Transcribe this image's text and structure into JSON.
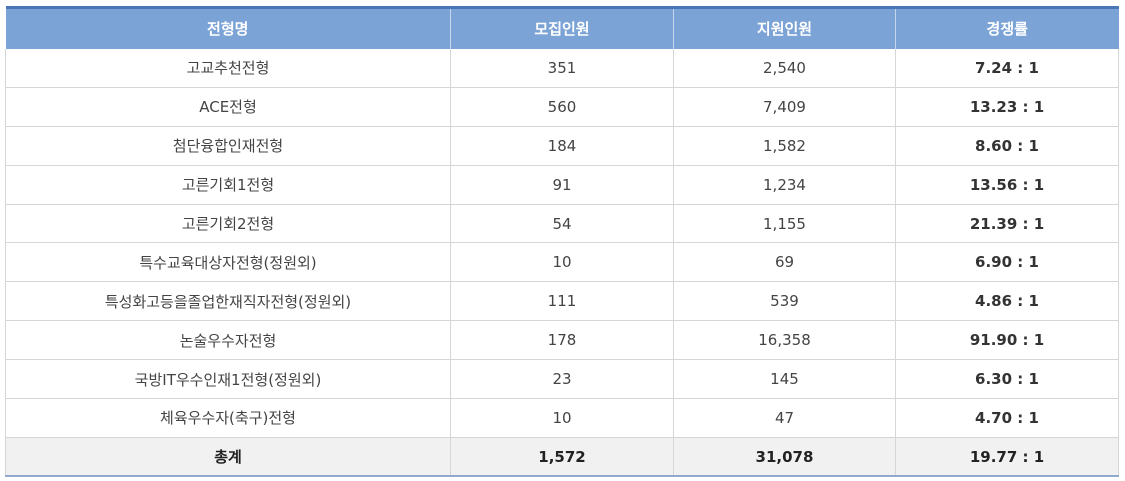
{
  "table": {
    "headers": [
      "전형명",
      "모집인원",
      "지원인원",
      "경쟁률"
    ],
    "rows": [
      {
        "name": "고교추천전형",
        "recruit": "351",
        "applicants": "2,540",
        "ratio": "7.24 : 1"
      },
      {
        "name": "ACE전형",
        "recruit": "560",
        "applicants": "7,409",
        "ratio": "13.23 : 1"
      },
      {
        "name": "첨단융합인재전형",
        "recruit": "184",
        "applicants": "1,582",
        "ratio": "8.60 : 1"
      },
      {
        "name": "고른기회1전형",
        "recruit": "91",
        "applicants": "1,234",
        "ratio": "13.56 : 1"
      },
      {
        "name": "고른기회2전형",
        "recruit": "54",
        "applicants": "1,155",
        "ratio": "21.39 : 1"
      },
      {
        "name": "특수교육대상자전형(정원외)",
        "recruit": "10",
        "applicants": "69",
        "ratio": "6.90 : 1"
      },
      {
        "name": "특성화고등을졸업한재직자전형(정원외)",
        "recruit": "111",
        "applicants": "539",
        "ratio": "4.86 : 1"
      },
      {
        "name": "논술우수자전형",
        "recruit": "178",
        "applicants": "16,358",
        "ratio": "91.90 : 1"
      },
      {
        "name": "국방IT우수인재1전형(정원외)",
        "recruit": "23",
        "applicants": "145",
        "ratio": "6.30 : 1"
      },
      {
        "name": "체육우수자(축구)전형",
        "recruit": "10",
        "applicants": "47",
        "ratio": "4.70 : 1"
      }
    ],
    "total": {
      "name": "총계",
      "recruit": "1,572",
      "applicants": "31,078",
      "ratio": "19.77 : 1"
    }
  },
  "colors": {
    "header_bg": "#7ba3d6",
    "header_border": "#4a76b8",
    "total_bg": "#f1f1f1"
  }
}
